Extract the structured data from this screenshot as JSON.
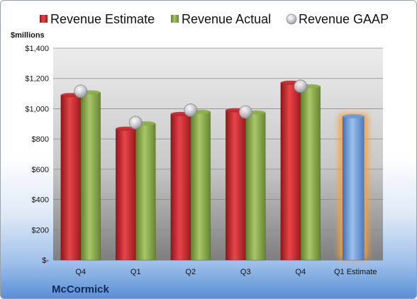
{
  "chart_data": {
    "type": "bar",
    "unit_label": "$millions",
    "company": "McCormick",
    "categories": [
      "Q4",
      "Q1",
      "Q2",
      "Q3",
      "Q4",
      "Q1 Estimate"
    ],
    "ylim": [
      0,
      1400
    ],
    "yticks": [
      0,
      200,
      400,
      600,
      800,
      1000,
      1200,
      1400
    ],
    "ytick_labels": [
      "$-",
      "$200",
      "$400",
      "$600",
      "$800",
      "$1,000",
      "$1,200",
      "$1,400"
    ],
    "grid": true,
    "legend_position": "top",
    "series": [
      {
        "name": "Revenue Estimate",
        "mark": "bar",
        "color": "#c0282e",
        "values": [
          1090,
          868,
          965,
          990,
          1172,
          null
        ]
      },
      {
        "name": "Revenue Actual",
        "mark": "bar",
        "color": "#8dac4a",
        "values": [
          1108,
          903,
          980,
          975,
          1148,
          null
        ]
      },
      {
        "name": "Revenue GAAP",
        "mark": "marker",
        "color": "#b8bcc2",
        "values": [
          1115,
          908,
          990,
          978,
          1148,
          null
        ]
      },
      {
        "name": "Q1 Estimate",
        "mark": "bar",
        "color": "#6f98d2",
        "values": [
          null,
          null,
          null,
          null,
          null,
          950
        ]
      }
    ]
  }
}
